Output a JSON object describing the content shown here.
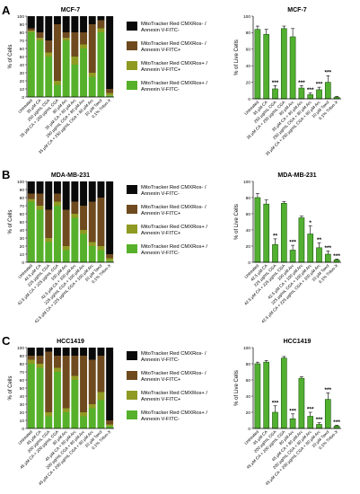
{
  "figure": {
    "ylabel_stack": "% of Cells",
    "ylabel_bar": "% of Live Cells",
    "legend_labels": [
      [
        "MitoTracker Red CMXRos- /",
        "Annexin V-FITC-"
      ],
      [
        "MitoTracker Red CMXRos- /",
        "Annexin V-FITC+"
      ],
      [
        "MitoTracker Red CMXRos+ /",
        "Annexin V-FITC+"
      ],
      [
        "MitoTracker Red CMXRos+ /",
        "Annexin V-FITC-"
      ]
    ],
    "legend_colors": [
      "#0a0a0a",
      "#6e4a1e",
      "#8f9a22",
      "#56b02a"
    ]
  },
  "chart_data": [
    {
      "panel": "A",
      "title": "MCF-7",
      "type": "bar",
      "stacked": true,
      "categories": [
        "Untreated",
        "35 µM CA",
        "250 µg/mL CGA",
        "35 µM CA + 250 µg/mL CGA",
        "80 µM Arc",
        "35 µM CA + 80 µM Arc",
        "250 µg/mL CGA + 80 µM Arc",
        "35 µM CA + 250 µg/mL CGA + 80 µM Arc",
        "10 µM Taxol",
        "0.1% Triton-X"
      ],
      "ylim": [
        0,
        100
      ],
      "yticks": [
        0,
        10,
        20,
        30,
        40,
        50,
        60,
        70,
        80,
        90,
        100
      ],
      "series_order_bottom_to_top": [
        "MitoTracker Red CMXRos+ / Annexin V-FITC-",
        "MitoTracker Red CMXRos+ / Annexin V-FITC+",
        "MitoTracker Red CMXRos- / Annexin V-FITC+",
        "MitoTracker Red CMXRos- / Annexin V-FITC-"
      ],
      "stack_values": [
        [
          80,
          2,
          3,
          15
        ],
        [
          70,
          3,
          7,
          20
        ],
        [
          50,
          5,
          15,
          30
        ],
        [
          15,
          5,
          70,
          10
        ],
        [
          70,
          3,
          7,
          20
        ],
        [
          40,
          10,
          30,
          20
        ],
        [
          60,
          5,
          15,
          20
        ],
        [
          25,
          5,
          60,
          10
        ],
        [
          80,
          5,
          10,
          5
        ],
        [
          2,
          3,
          5,
          90
        ]
      ]
    },
    {
      "panel": "A",
      "title": "MCF-7",
      "type": "bar",
      "categories": [
        "Untreated",
        "35 µM CA",
        "250 µg/mL CGA",
        "35 µM CA + 250 µg/mL CGA",
        "80 µM Arc",
        "35 µM CA + 80 µM Arc",
        "250 µg/mL CGA + 80 µM Arc",
        "35 µM CA + 250 µg/mL CGA + 80 µM Arc",
        "10 µM Taxol",
        "0.1% Triton-X"
      ],
      "ylim": [
        0,
        100
      ],
      "yticks": [
        0,
        20,
        40,
        60,
        80,
        100
      ],
      "values": [
        84,
        78,
        12,
        85,
        75,
        13,
        5,
        11,
        20,
        2
      ],
      "errors": [
        4,
        6,
        4,
        3,
        10,
        3,
        2,
        3,
        8,
        1
      ],
      "significance": [
        "",
        "",
        "***",
        "",
        "",
        "***",
        "***",
        "***",
        "***",
        ""
      ]
    },
    {
      "panel": "B",
      "title": "MDA-MB-231",
      "type": "bar",
      "stacked": true,
      "categories": [
        "Untreated",
        "42.5 µM CA",
        "225 µg/mL CGA",
        "42.5 µM CA + 225 µg/mL CGA",
        "100 µM Arc",
        "42.5 µM CA + 100 µM Arc",
        "225 µg/mL CGA + 100 µM Arc",
        "42.5 µM CA + 225 µg/mL CGA + 100 µM Arc",
        "10 µM Taxol",
        "0.1% Triton-X"
      ],
      "ylim": [
        0,
        100
      ],
      "yticks": [
        0,
        10,
        20,
        30,
        40,
        50,
        60,
        70,
        80,
        90,
        100
      ],
      "series_order_bottom_to_top": [
        "MitoTracker Red CMXRos+ / Annexin V-FITC-",
        "MitoTracker Red CMXRos+ / Annexin V-FITC+",
        "MitoTracker Red CMXRos- / Annexin V-FITC+",
        "MitoTracker Red CMXRos- / Annexin V-FITC-"
      ],
      "stack_values": [
        [
          75,
          3,
          7,
          15
        ],
        [
          65,
          5,
          15,
          15
        ],
        [
          25,
          5,
          35,
          35
        ],
        [
          70,
          5,
          10,
          15
        ],
        [
          15,
          5,
          45,
          35
        ],
        [
          55,
          5,
          15,
          25
        ],
        [
          35,
          5,
          30,
          30
        ],
        [
          20,
          5,
          50,
          25
        ],
        [
          15,
          5,
          60,
          20
        ],
        [
          2,
          3,
          5,
          90
        ]
      ]
    },
    {
      "panel": "B",
      "title": "MDA-MB-231",
      "type": "bar",
      "categories": [
        "Untreated",
        "42.5 µM CA",
        "225 µg/mL CGA",
        "42.5 µM CA + 225 µg/mL CGA",
        "100 µM Arc",
        "42.5 µM CA + 100 µM Arc",
        "225 µg/mL CGA + 100 µM Arc",
        "42.5 µM CA + 225 µg/mL CGA + 100 µM Arc",
        "10 µM Taxol",
        "0.1% Triton-X"
      ],
      "ylim": [
        0,
        100
      ],
      "yticks": [
        0,
        20,
        40,
        60,
        80,
        100
      ],
      "values": [
        80,
        72,
        22,
        73,
        15,
        55,
        35,
        18,
        10,
        3
      ],
      "errors": [
        5,
        5,
        7,
        2,
        6,
        2,
        10,
        6,
        4,
        1
      ],
      "significance": [
        "",
        "",
        "**",
        "",
        "***",
        "",
        "*",
        "**",
        "***",
        "***"
      ]
    },
    {
      "panel": "C",
      "title": "HCC1419",
      "type": "bar",
      "stacked": true,
      "categories": [
        "Untreated",
        "45 µM CA",
        "200 µg/mL CGA",
        "45 µM CA + 200 µg/mL CGA",
        "80 µM Arc",
        "45 µM CA + 80 µM Arc",
        "200 µg/mL CGA + 80 µM Arc",
        "45 µM CA + 200 µg/mL CGA + 80 µM Arc",
        "10 µM Taxol",
        "0.1% Triton-X"
      ],
      "ylim": [
        0,
        100
      ],
      "yticks": [
        0,
        10,
        20,
        30,
        40,
        50,
        60,
        70,
        80,
        90,
        100
      ],
      "series_order_bottom_to_top": [
        "MitoTracker Red CMXRos+ / Annexin V-FITC-",
        "MitoTracker Red CMXRos+ / Annexin V-FITC+",
        "MitoTracker Red CMXRos- / Annexin V-FITC+",
        "MitoTracker Red CMXRos- / Annexin V-FITC-"
      ],
      "stack_values": [
        [
          80,
          5,
          5,
          10
        ],
        [
          75,
          5,
          10,
          10
        ],
        [
          15,
          5,
          75,
          5
        ],
        [
          70,
          5,
          15,
          10
        ],
        [
          20,
          5,
          65,
          10
        ],
        [
          60,
          5,
          25,
          10
        ],
        [
          15,
          5,
          70,
          10
        ],
        [
          25,
          5,
          55,
          15
        ],
        [
          35,
          10,
          45,
          10
        ],
        [
          3,
          2,
          5,
          90
        ]
      ]
    },
    {
      "panel": "C",
      "title": "HCC1419",
      "type": "bar",
      "categories": [
        "Untreated",
        "45 µM CA",
        "200 µg/mL CGA",
        "45 µM CA + 200 µg/mL CGA",
        "80 µM Arc",
        "45 µM CA + 80 µM Arc",
        "200 µg/mL CGA + 80 µM Arc",
        "45 µM CA + 200 µg/mL CGA + 80 µM Arc",
        "10 µM Taxol",
        "0.1% Triton-X"
      ],
      "ylim": [
        0,
        100
      ],
      "yticks": [
        0,
        20,
        40,
        60,
        80,
        100
      ],
      "values": [
        80,
        82,
        20,
        87,
        12,
        62,
        15,
        5,
        36,
        3
      ],
      "errors": [
        2,
        2,
        8,
        2,
        6,
        2,
        5,
        2,
        8,
        1
      ],
      "significance": [
        "",
        "",
        "***",
        "",
        "***",
        "",
        "***",
        "***",
        "***",
        "***"
      ]
    }
  ]
}
